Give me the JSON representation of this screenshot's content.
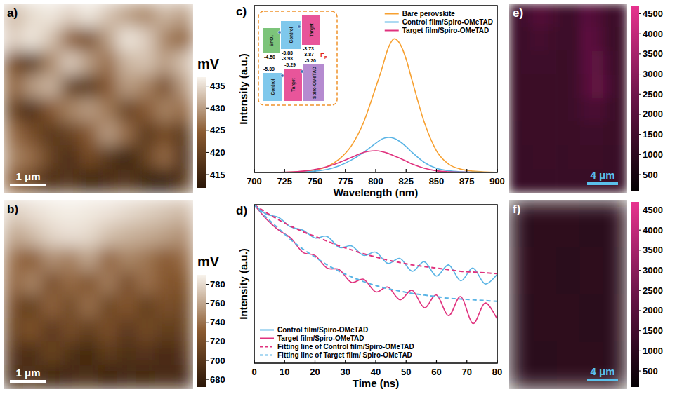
{
  "chart_data": [
    {
      "type": "heatmap",
      "title": "a)",
      "colorbar_title": "mV",
      "annotations": [
        "1 μm"
      ],
      "colors": [
        "#2a1608",
        "#8a5a30",
        "#f8f3ec"
      ],
      "zlim": [
        412,
        437
      ],
      "zticks": [
        415,
        420,
        425,
        430,
        435
      ],
      "cells": [
        [
          432,
          435,
          436,
          434,
          436,
          433,
          430,
          428,
          432,
          430
        ],
        [
          434,
          436,
          433,
          425,
          422,
          430,
          436,
          434,
          428,
          425
        ],
        [
          422,
          418,
          428,
          434,
          430,
          426,
          432,
          433,
          430,
          433
        ],
        [
          425,
          430,
          432,
          420,
          418,
          424,
          430,
          428,
          422,
          430
        ],
        [
          420,
          416,
          424,
          428,
          430,
          427,
          420,
          424,
          428,
          426
        ],
        [
          426,
          422,
          418,
          420,
          424,
          430,
          426,
          418,
          422,
          418
        ],
        [
          428,
          426,
          420,
          416,
          422,
          418,
          414,
          420,
          426,
          416
        ],
        [
          424,
          420,
          416,
          418,
          414,
          416,
          418,
          414,
          412,
          418
        ]
      ]
    },
    {
      "type": "heatmap",
      "title": "b)",
      "colorbar_title": "mV",
      "annotations": [
        "1 μm"
      ],
      "colors": [
        "#2a1608",
        "#8a5a30",
        "#f8f3ec"
      ],
      "zlim": [
        672,
        790
      ],
      "zticks": [
        680,
        700,
        720,
        740,
        760,
        780
      ],
      "cells": [
        [
          776,
          782,
          786,
          788,
          786,
          784,
          780,
          776,
          772,
          768
        ],
        [
          760,
          768,
          778,
          782,
          780,
          770,
          765,
          762,
          758,
          752
        ],
        [
          740,
          730,
          752,
          745,
          760,
          735,
          748,
          742,
          730,
          738
        ],
        [
          735,
          748,
          720,
          738,
          725,
          745,
          720,
          740,
          728,
          725
        ],
        [
          720,
          705,
          735,
          715,
          740,
          712,
          728,
          705,
          722,
          715
        ],
        [
          712,
          725,
          700,
          720,
          705,
          722,
          700,
          718,
          705,
          710
        ],
        [
          700,
          690,
          712,
          695,
          685,
          705,
          692,
          700,
          688,
          700
        ],
        [
          690,
          698,
          682,
          688,
          695,
          680,
          690,
          685,
          692,
          688
        ]
      ]
    },
    {
      "type": "line",
      "title": "c)",
      "xlabel": "Wavelength (nm)",
      "ylabel": "Intensity (a.u.)",
      "xlim": [
        700,
        900
      ],
      "xticks": [
        700,
        725,
        750,
        775,
        800,
        825,
        850,
        875,
        900
      ],
      "ylim": [
        0,
        1
      ],
      "tick_labels": "x",
      "legend": "top-right",
      "x": [
        700,
        710,
        720,
        730,
        740,
        750,
        760,
        770,
        780,
        790,
        800,
        805,
        810,
        815,
        820,
        825,
        830,
        840,
        850,
        860,
        870,
        880,
        890,
        900
      ],
      "series": [
        {
          "name": "Bare perovskite",
          "color": "#f7a030",
          "line_style": "solid",
          "values": [
            0,
            0,
            0,
            0.002,
            0.006,
            0.015,
            0.035,
            0.08,
            0.16,
            0.3,
            0.51,
            0.62,
            0.74,
            0.8,
            0.77,
            0.68,
            0.55,
            0.3,
            0.13,
            0.05,
            0.02,
            0.008,
            0.003,
            0.001
          ]
        },
        {
          "name": "Control film/Spiro-OMeTAD",
          "color": "#5ab4e5",
          "line_style": "solid",
          "values": [
            0,
            0,
            0,
            0.001,
            0.003,
            0.008,
            0.018,
            0.04,
            0.075,
            0.12,
            0.175,
            0.2,
            0.21,
            0.205,
            0.185,
            0.155,
            0.12,
            0.06,
            0.025,
            0.01,
            0.004,
            0.002,
            0.001,
            0
          ]
        },
        {
          "name": "Target film/Spiro-OMeTAD",
          "color": "#e0327e",
          "line_style": "solid",
          "values": [
            0,
            0,
            0.001,
            0.003,
            0.008,
            0.018,
            0.035,
            0.06,
            0.09,
            0.12,
            0.13,
            0.125,
            0.115,
            0.1,
            0.085,
            0.068,
            0.05,
            0.025,
            0.01,
            0.004,
            0.002,
            0.001,
            0,
            0
          ]
        }
      ],
      "annotations": [
        "SnO₂",
        "Control",
        "Target",
        "-4.50",
        "-3.83",
        "-3.93",
        "-3.73",
        "-3.87",
        "EF",
        "-5.39",
        "-5.29",
        "-5.20",
        "Control",
        "Target",
        "Spiro-OMeTAD"
      ]
    },
    {
      "type": "line",
      "title": "d)",
      "xlabel": "Time (ns)",
      "ylabel": "Intensity (a.u.)",
      "xlim": [
        0,
        80
      ],
      "xticks": [
        0,
        10,
        20,
        30,
        40,
        50,
        60,
        70,
        80
      ],
      "ylim": [
        0,
        1
      ],
      "tick_labels": "x",
      "legend": "bottom-left",
      "x": [
        0,
        4,
        8,
        12,
        16,
        20,
        24,
        28,
        32,
        36,
        40,
        44,
        48,
        52,
        56,
        60,
        64,
        68,
        72,
        76,
        80
      ],
      "series": [
        {
          "name": "Control film/Spiro-OMeTAD",
          "color": "#5ab4e5",
          "line_style": "solid",
          "values": [
            1.0,
            0.94,
            0.92,
            0.86,
            0.84,
            0.79,
            0.8,
            0.73,
            0.74,
            0.68,
            0.7,
            0.63,
            0.66,
            0.58,
            0.64,
            0.55,
            0.62,
            0.52,
            0.6,
            0.5,
            0.56
          ]
        },
        {
          "name": "Target film/Spiro-OMeTAD",
          "color": "#e0327e",
          "line_style": "solid",
          "values": [
            1.0,
            0.91,
            0.84,
            0.79,
            0.7,
            0.68,
            0.6,
            0.59,
            0.51,
            0.53,
            0.45,
            0.48,
            0.4,
            0.46,
            0.35,
            0.43,
            0.3,
            0.42,
            0.25,
            0.38,
            0.28
          ]
        },
        {
          "name": "Fitting line of Control film/Spiro-OMeTAD",
          "color": "#e0327e",
          "line_style": "dashed",
          "values": [
            1.0,
            0.95,
            0.905,
            0.865,
            0.83,
            0.8,
            0.77,
            0.74,
            0.715,
            0.69,
            0.67,
            0.65,
            0.635,
            0.62,
            0.61,
            0.6,
            0.59,
            0.58,
            0.575,
            0.57,
            0.565
          ]
        },
        {
          "name": "Fitting line of Target film/ Spiro-OMeTAD",
          "color": "#5ab4e5",
          "line_style": "dashed",
          "values": [
            1.0,
            0.92,
            0.85,
            0.78,
            0.72,
            0.67,
            0.62,
            0.58,
            0.545,
            0.515,
            0.49,
            0.47,
            0.455,
            0.44,
            0.43,
            0.42,
            0.41,
            0.405,
            0.4,
            0.395,
            0.39
          ]
        }
      ]
    },
    {
      "type": "heatmap",
      "title": "e)",
      "annotations": [
        "4 μm"
      ],
      "colors": [
        "#050003",
        "#6a1448",
        "#e8338f"
      ],
      "zlim": [
        100,
        4700
      ],
      "zticks": [
        500,
        1000,
        1500,
        2000,
        2500,
        3000,
        3500,
        4000,
        4500
      ],
      "cells": [
        [
          1400,
          1500,
          1900,
          1700,
          1400,
          1350,
          2000,
          1800,
          1400,
          1350
        ],
        [
          1350,
          1400,
          1600,
          1450,
          1350,
          1300,
          2100,
          1900,
          1400,
          1300
        ],
        [
          1300,
          1350,
          1400,
          1350,
          1300,
          1350,
          2000,
          2200,
          1500,
          1300
        ],
        [
          1300,
          1300,
          1300,
          1300,
          1300,
          1400,
          1900,
          2300,
          1600,
          1300
        ],
        [
          1300,
          1300,
          1300,
          1300,
          1300,
          1350,
          1600,
          1700,
          1400,
          1300
        ],
        [
          1250,
          1300,
          1300,
          1300,
          1300,
          1300,
          1350,
          1350,
          1300,
          1300
        ],
        [
          1250,
          1250,
          1300,
          1300,
          1250,
          1300,
          1300,
          1300,
          1250,
          1250
        ],
        [
          1250,
          1250,
          1250,
          1250,
          1250,
          1250,
          1250,
          1250,
          1250,
          1250
        ]
      ]
    },
    {
      "type": "heatmap",
      "title": "f)",
      "annotations": [
        "4 μm"
      ],
      "colors": [
        "#050003",
        "#6a1448",
        "#e8338f"
      ],
      "zlim": [
        100,
        4700
      ],
      "zticks": [
        500,
        1000,
        1500,
        2000,
        2500,
        3000,
        3500,
        4000,
        4500
      ],
      "cells": [
        [
          980,
          1020,
          1000,
          960,
          1000
        ],
        [
          1000,
          1040,
          990,
          1010,
          970
        ],
        [
          960,
          1000,
          1020,
          990,
          1000
        ],
        [
          990,
          970,
          1000,
          1010,
          980
        ]
      ]
    }
  ]
}
